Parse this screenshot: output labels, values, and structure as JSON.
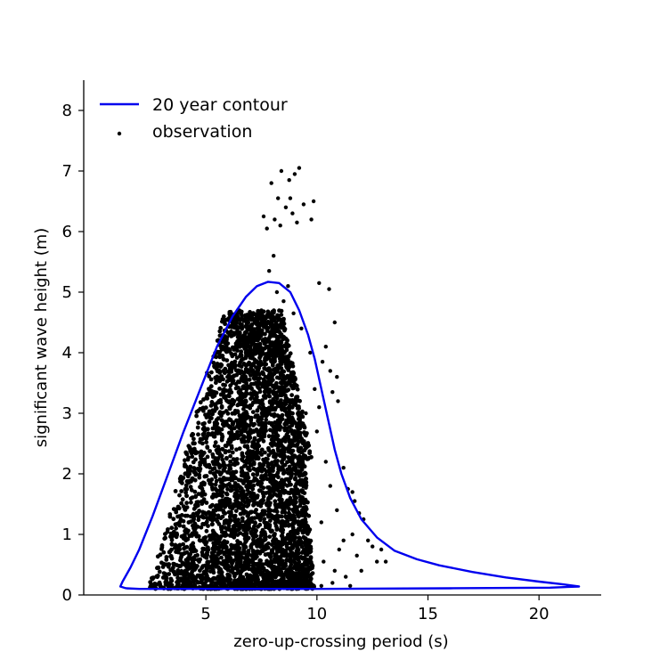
{
  "chart_data": {
    "type": "scatter",
    "xlabel": "zero-up-crossing period (s)",
    "ylabel": "significant wave height (m)",
    "xlim": [
      -0.5,
      22.8
    ],
    "ylim": [
      0,
      8.5
    ],
    "x_ticks": [
      5,
      10,
      15,
      20
    ],
    "y_ticks": [
      0,
      1,
      2,
      3,
      4,
      5,
      6,
      7,
      8
    ],
    "legend_position": "top-left",
    "grid": false,
    "series": [
      {
        "name": "20 year contour",
        "kind": "line",
        "color": "#0000ee",
        "points": [
          [
            1.4,
            0.11
          ],
          [
            1.15,
            0.14
          ],
          [
            1.25,
            0.22
          ],
          [
            1.6,
            0.45
          ],
          [
            2.0,
            0.75
          ],
          [
            2.6,
            1.3
          ],
          [
            3.3,
            2.0
          ],
          [
            4.0,
            2.7
          ],
          [
            4.8,
            3.45
          ],
          [
            5.5,
            4.1
          ],
          [
            6.2,
            4.6
          ],
          [
            6.8,
            4.92
          ],
          [
            7.3,
            5.1
          ],
          [
            7.8,
            5.17
          ],
          [
            8.3,
            5.15
          ],
          [
            8.8,
            5.0
          ],
          [
            9.2,
            4.7
          ],
          [
            9.6,
            4.3
          ],
          [
            9.9,
            3.9
          ],
          [
            10.2,
            3.4
          ],
          [
            10.5,
            2.9
          ],
          [
            10.8,
            2.4
          ],
          [
            11.1,
            2.0
          ],
          [
            11.5,
            1.6
          ],
          [
            12.0,
            1.25
          ],
          [
            12.7,
            0.95
          ],
          [
            13.5,
            0.73
          ],
          [
            14.5,
            0.59
          ],
          [
            15.5,
            0.49
          ],
          [
            17.0,
            0.38
          ],
          [
            18.5,
            0.29
          ],
          [
            20.0,
            0.22
          ],
          [
            21.0,
            0.18
          ],
          [
            21.8,
            0.14
          ],
          [
            20.5,
            0.12
          ],
          [
            16.0,
            0.11
          ],
          [
            10.0,
            0.1
          ],
          [
            5.0,
            0.1
          ],
          [
            2.0,
            0.1
          ],
          [
            1.4,
            0.11
          ]
        ]
      },
      {
        "name": "observation",
        "kind": "scatter",
        "color": "#000000",
        "points": [
          [
            7.85,
            5.35
          ],
          [
            8.05,
            5.6
          ],
          [
            8.35,
            6.1
          ],
          [
            8.6,
            6.4
          ],
          [
            8.75,
            6.85
          ],
          [
            9.0,
            6.95
          ],
          [
            9.2,
            7.05
          ],
          [
            8.4,
            7.0
          ],
          [
            7.95,
            6.8
          ],
          [
            7.6,
            6.25
          ],
          [
            8.1,
            6.2
          ],
          [
            8.8,
            6.55
          ],
          [
            9.4,
            6.45
          ],
          [
            9.1,
            6.15
          ],
          [
            8.25,
            6.55
          ],
          [
            7.75,
            6.05
          ],
          [
            8.9,
            6.3
          ],
          [
            9.75,
            6.2
          ],
          [
            9.85,
            6.5
          ],
          [
            10.1,
            5.15
          ],
          [
            10.55,
            5.05
          ],
          [
            10.8,
            4.5
          ],
          [
            10.9,
            3.6
          ],
          [
            10.95,
            3.2
          ],
          [
            10.7,
            3.35
          ],
          [
            11.2,
            2.1
          ],
          [
            11.4,
            1.75
          ],
          [
            11.6,
            1.7
          ],
          [
            11.7,
            1.55
          ],
          [
            11.9,
            1.35
          ],
          [
            12.1,
            1.25
          ],
          [
            12.3,
            0.9
          ],
          [
            12.5,
            0.8
          ],
          [
            12.7,
            0.55
          ],
          [
            12.9,
            0.75
          ],
          [
            13.1,
            0.55
          ],
          [
            11.2,
            0.9
          ],
          [
            11.6,
            1.0
          ],
          [
            11.8,
            0.65
          ],
          [
            12.0,
            0.4
          ],
          [
            11.3,
            0.3
          ],
          [
            10.8,
            0.4
          ],
          [
            10.3,
            0.55
          ],
          [
            9.6,
            0.8
          ],
          [
            10.4,
            4.1
          ],
          [
            10.25,
            3.85
          ],
          [
            10.6,
            3.7
          ],
          [
            9.9,
            3.4
          ],
          [
            10.1,
            3.1
          ],
          [
            9.7,
            4.0
          ],
          [
            9.3,
            4.4
          ],
          [
            8.95,
            4.65
          ],
          [
            8.7,
            5.1
          ],
          [
            8.5,
            4.85
          ],
          [
            8.2,
            5.0
          ],
          [
            7.5,
            4.7
          ],
          [
            7.2,
            4.5
          ],
          [
            6.9,
            4.1
          ],
          [
            6.6,
            3.7
          ],
          [
            9.5,
            3.0
          ],
          [
            10.0,
            2.7
          ],
          [
            10.4,
            2.2
          ],
          [
            10.6,
            1.8
          ],
          [
            10.9,
            1.4
          ],
          [
            10.2,
            1.2
          ],
          [
            11.0,
            0.75
          ],
          [
            10.7,
            0.2
          ],
          [
            10.2,
            0.15
          ],
          [
            11.5,
            0.15
          ],
          [
            9.8,
            0.1
          ]
        ]
      }
    ]
  }
}
